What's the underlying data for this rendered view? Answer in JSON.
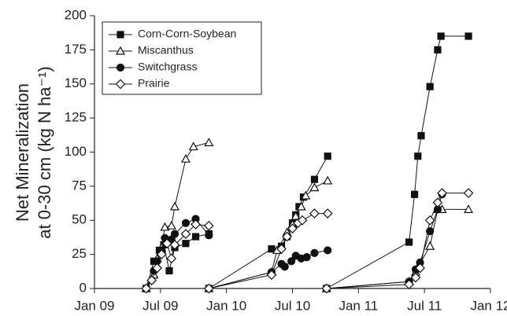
{
  "chart_data": {
    "type": "line",
    "ylabel": [
      "Net Mineralization",
      "at 0-30 cm (kg N ha⁻¹)"
    ],
    "xlim": [
      0,
      36
    ],
    "xticks": [
      {
        "value": 0,
        "label": "Jan 09"
      },
      {
        "value": 6,
        "label": "Jul 09"
      },
      {
        "value": 12,
        "label": "Jan 10"
      },
      {
        "value": 18,
        "label": "Jul 10"
      },
      {
        "value": 24,
        "label": "Jan 11"
      },
      {
        "value": 30,
        "label": "Jul 11"
      },
      {
        "value": 36,
        "label": "Jan 12"
      }
    ],
    "ylim": [
      0,
      200
    ],
    "yticks": [
      0,
      25,
      50,
      75,
      100,
      125,
      150,
      175,
      200
    ],
    "legend": "upper left",
    "series": [
      {
        "name": "Corn-Corn-Soybean",
        "color": "#111111",
        "marker": "square",
        "filled": true,
        "x": [
          4.7,
          5.4,
          5.9,
          6.3,
          6.8,
          7.3,
          8.3,
          9.2,
          10.4,
          null,
          10.4,
          16.1,
          17.0,
          17.5,
          18.0,
          18.3,
          18.6,
          19.0,
          20.0,
          21.2,
          null,
          21.1,
          28.6,
          29.1,
          29.4,
          29.7,
          30.5,
          31.2,
          31.5,
          34.0
        ],
        "values": [
          0,
          20,
          28,
          32,
          13,
          30,
          33,
          38,
          40,
          null,
          0,
          29,
          31,
          38,
          48,
          54,
          60,
          67,
          80,
          97,
          null,
          0,
          34,
          69,
          97,
          112,
          148,
          175,
          185,
          185
        ]
      },
      {
        "name": "Miscanthus",
        "color": "#111111",
        "marker": "triangle",
        "filled": false,
        "x": [
          4.7,
          5.4,
          5.7,
          6.1,
          6.4,
          7.0,
          7.3,
          8.3,
          9.0,
          10.4,
          null,
          10.4,
          16.1,
          16.6,
          17.5,
          18.0,
          18.3,
          18.8,
          19.2,
          20.0,
          21.2,
          null,
          21.1,
          28.6,
          29.2,
          29.5,
          30.5,
          31.2,
          31.6,
          34.0
        ],
        "values": [
          0,
          10,
          22,
          30,
          45,
          46,
          60,
          95,
          104,
          107,
          null,
          0,
          12,
          28,
          41,
          47,
          53,
          60,
          68,
          74,
          79,
          null,
          0,
          5,
          12,
          17,
          31,
          58,
          58,
          58
        ]
      },
      {
        "name": "Switchgrass",
        "color": "#111111",
        "marker": "circle",
        "filled": true,
        "x": [
          4.7,
          5.4,
          5.7,
          6.1,
          6.4,
          7.0,
          7.3,
          8.3,
          9.2,
          10.4,
          null,
          10.4,
          16.1,
          17.0,
          17.3,
          17.9,
          18.3,
          18.8,
          19.3,
          20.0,
          21.2,
          null,
          21.1,
          28.6,
          29.2,
          29.6,
          30.5,
          31.2,
          31.6
        ],
        "values": [
          0,
          13,
          20,
          28,
          37,
          36,
          40,
          48,
          51,
          39,
          null,
          0,
          12,
          18,
          16,
          20,
          24,
          22,
          23,
          26,
          28,
          null,
          0,
          5,
          14,
          19,
          42,
          58,
          69
        ]
      },
      {
        "name": "Prairie",
        "color": "#111111",
        "marker": "diamond",
        "filled": false,
        "x": [
          4.7,
          5.2,
          5.7,
          6.1,
          6.6,
          7.0,
          7.3,
          8.3,
          9.2,
          10.4,
          null,
          10.4,
          16.1,
          17.0,
          17.5,
          18.0,
          18.5,
          18.9,
          20.0,
          21.2,
          null,
          21.1,
          28.6,
          29.2,
          29.6,
          30.5,
          31.2,
          31.6,
          34.0
        ],
        "values": [
          0,
          6,
          15,
          25,
          33,
          22,
          32,
          40,
          47,
          46,
          null,
          0,
          10,
          29,
          38,
          44,
          48,
          50,
          55,
          55,
          null,
          0,
          3,
          8,
          15,
          50,
          63,
          70,
          70
        ]
      }
    ]
  }
}
